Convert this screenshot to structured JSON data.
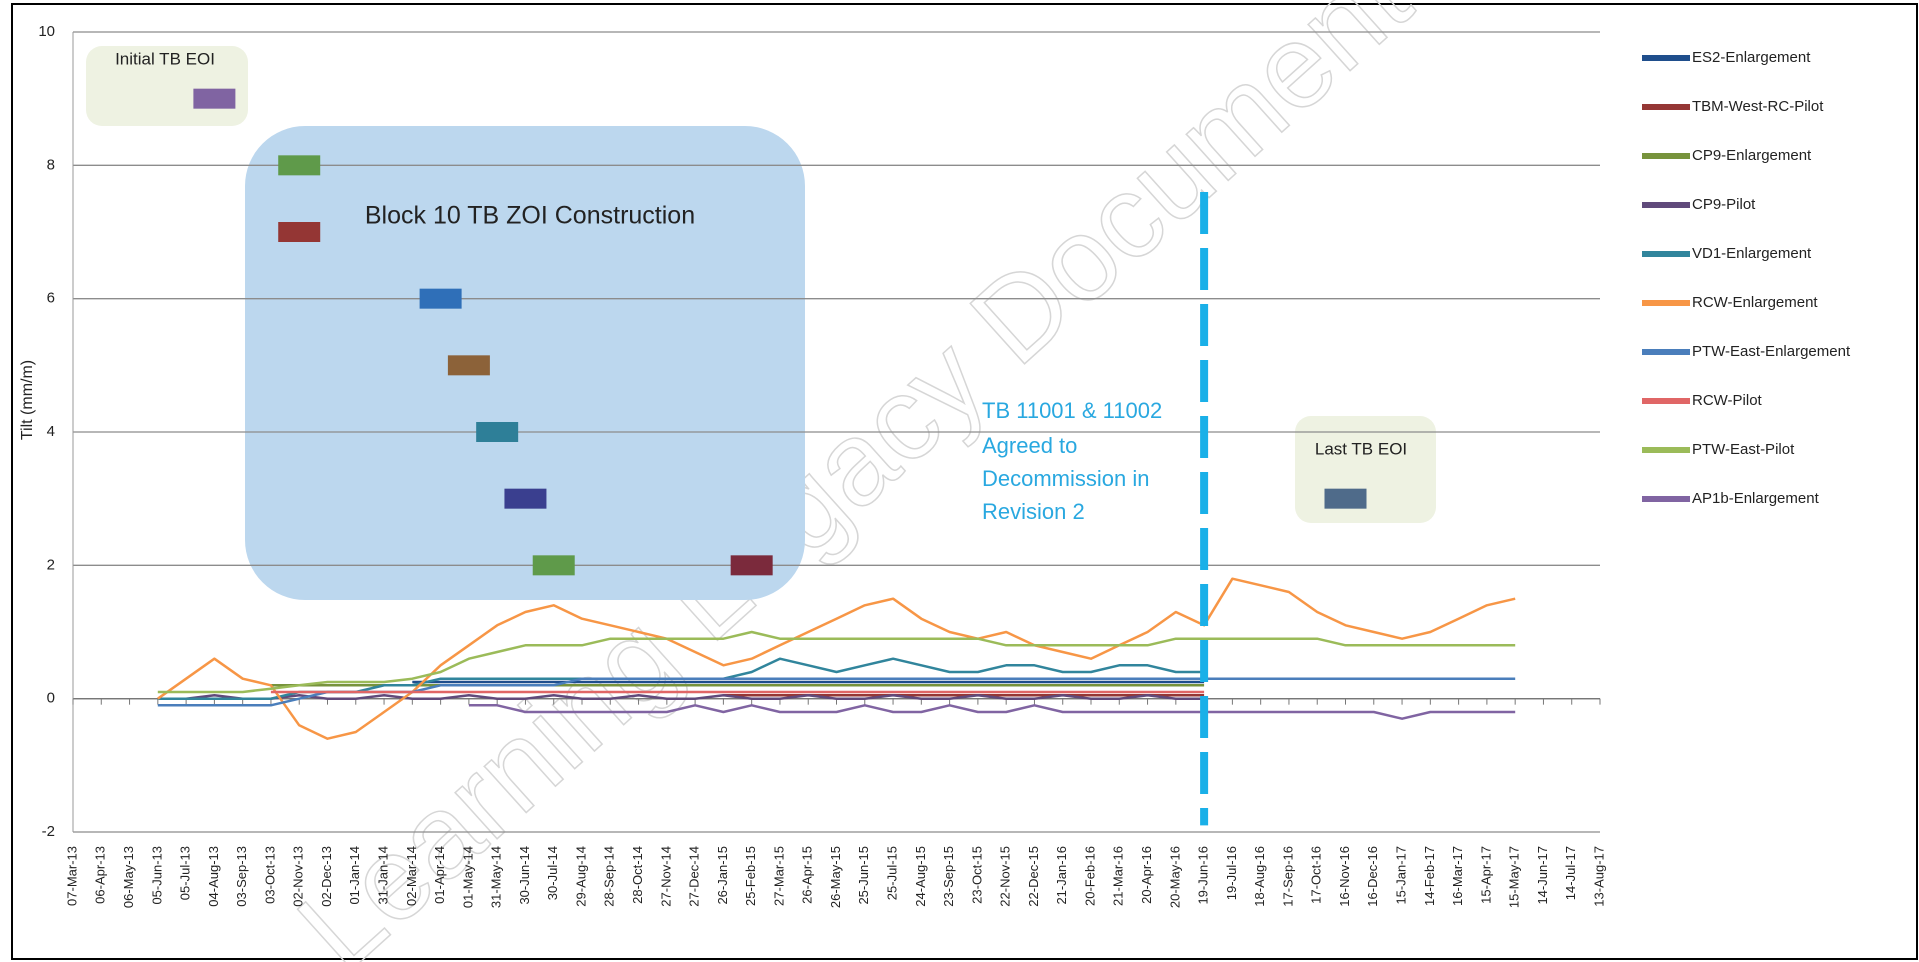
{
  "chart_data": {
    "type": "line",
    "y_label": "Tilt (mm/m)",
    "watermark": "Learning Legacy Document",
    "annotations": {
      "initial": "Initial TB EOI",
      "block": "Block 10 TB ZOI Construction",
      "decommission": [
        "TB 11001 & 11002",
        "Agreed to",
        "Decommission in",
        "Revision 2"
      ],
      "last": "Last TB EOI"
    },
    "categories": [
      "07-Mar-13",
      "06-Apr-13",
      "06-May-13",
      "05-Jun-13",
      "05-Jul-13",
      "04-Aug-13",
      "03-Sep-13",
      "03-Oct-13",
      "02-Nov-13",
      "02-Dec-13",
      "01-Jan-14",
      "31-Jan-14",
      "02-Mar-14",
      "01-Apr-14",
      "01-May-14",
      "31-May-14",
      "30-Jun-14",
      "30-Jul-14",
      "29-Aug-14",
      "28-Sep-14",
      "28-Oct-14",
      "27-Nov-14",
      "27-Dec-14",
      "26-Jan-15",
      "25-Feb-15",
      "27-Mar-15",
      "26-Apr-15",
      "26-May-15",
      "25-Jun-15",
      "25-Jul-15",
      "24-Aug-15",
      "23-Sep-15",
      "23-Oct-15",
      "22-Nov-15",
      "22-Dec-15",
      "21-Jan-16",
      "20-Feb-16",
      "21-Mar-16",
      "20-Apr-16",
      "20-May-16",
      "19-Jun-16",
      "19-Jul-16",
      "18-Aug-16",
      "17-Sep-16",
      "17-Oct-16",
      "16-Nov-16",
      "16-Dec-16",
      "15-Jan-17",
      "14-Feb-17",
      "16-Mar-17",
      "15-Apr-17",
      "15-May-17",
      "14-Jun-17",
      "14-Jul-17",
      "13-Aug-17"
    ],
    "series": [
      {
        "name": "ES2-Enlargement",
        "color": "#1f4e8c",
        "values": [
          null,
          null,
          null,
          null,
          null,
          null,
          null,
          null,
          null,
          null,
          null,
          null,
          0.25,
          0.25,
          0.25,
          0.25,
          0.25,
          0.25,
          0.25,
          0.25,
          0.25,
          0.25,
          0.25,
          0.25,
          0.25,
          0.25,
          0.25,
          0.25,
          0.25,
          0.25,
          0.25,
          0.25,
          0.25,
          0.25,
          0.25,
          0.25,
          0.25,
          0.25,
          0.25,
          0.25,
          0.25,
          null,
          null,
          null,
          null,
          null,
          null,
          null,
          null,
          null,
          null,
          null,
          null,
          null,
          null
        ]
      },
      {
        "name": "TBM-West-RC-Pilot",
        "color": "#953735",
        "values": [
          null,
          null,
          null,
          null,
          null,
          null,
          null,
          null,
          null,
          null,
          null,
          null,
          null,
          null,
          null,
          null,
          null,
          null,
          null,
          null,
          null,
          null,
          null,
          0.05,
          0.05,
          0.05,
          0.05,
          0.05,
          0.05,
          0.05,
          0.05,
          0.05,
          0.05,
          0.05,
          0.05,
          0.05,
          0.05,
          0.05,
          0.05,
          0.05,
          0.05,
          null,
          null,
          null,
          null,
          null,
          null,
          null,
          null,
          null,
          null,
          null,
          null,
          null,
          null
        ]
      },
      {
        "name": "CP9-Enlargement",
        "color": "#77933c",
        "values": [
          null,
          null,
          null,
          null,
          null,
          null,
          null,
          0.2,
          0.2,
          0.2,
          0.2,
          0.2,
          0.2,
          0.2,
          0.2,
          0.2,
          0.2,
          0.2,
          0.2,
          0.2,
          0.2,
          0.2,
          0.2,
          0.2,
          0.2,
          0.2,
          0.2,
          0.2,
          0.2,
          0.2,
          0.2,
          0.2,
          0.2,
          0.2,
          0.2,
          0.2,
          0.2,
          0.2,
          0.2,
          0.2,
          0.2,
          null,
          null,
          null,
          null,
          null,
          null,
          null,
          null,
          null,
          null,
          null,
          null,
          null,
          null
        ]
      },
      {
        "name": "CP9-Pilot",
        "color": "#604a7b",
        "values": [
          null,
          null,
          null,
          0,
          0,
          0.05,
          0,
          0,
          0.05,
          0,
          0,
          0.05,
          0,
          0,
          0.05,
          0,
          0,
          0.05,
          0,
          0,
          0.05,
          0,
          0,
          0.05,
          0,
          0,
          0.05,
          0,
          0,
          0.05,
          0,
          0,
          0.05,
          0,
          0,
          0.05,
          0,
          0,
          0.05,
          0,
          0,
          null,
          null,
          null,
          null,
          null,
          null,
          null,
          null,
          null,
          null,
          null,
          null,
          null,
          null
        ]
      },
      {
        "name": "VD1-Enlargement",
        "color": "#31859c",
        "values": [
          null,
          null,
          null,
          0,
          0,
          0,
          0,
          0,
          0.1,
          0.1,
          0.1,
          0.2,
          0.2,
          0.3,
          0.3,
          0.3,
          0.3,
          0.3,
          0.3,
          0.3,
          0.3,
          0.3,
          0.3,
          0.3,
          0.4,
          0.6,
          0.5,
          0.4,
          0.5,
          0.6,
          0.5,
          0.4,
          0.4,
          0.5,
          0.5,
          0.4,
          0.4,
          0.5,
          0.5,
          0.4,
          0.4,
          null,
          null,
          null,
          null,
          null,
          null,
          null,
          null,
          null,
          null,
          null,
          null,
          null,
          null
        ]
      },
      {
        "name": "RCW-Enlargement",
        "color": "#f79646",
        "values": [
          null,
          null,
          null,
          0.0,
          0.3,
          0.6,
          0.3,
          0.2,
          -0.4,
          -0.6,
          -0.5,
          -0.2,
          0.1,
          0.5,
          0.8,
          1.1,
          1.3,
          1.4,
          1.2,
          1.1,
          1.0,
          0.9,
          0.7,
          0.5,
          0.6,
          0.8,
          1.0,
          1.2,
          1.4,
          1.5,
          1.2,
          1.0,
          0.9,
          1.0,
          0.8,
          0.7,
          0.6,
          0.8,
          1.0,
          1.3,
          1.1,
          1.8,
          1.7,
          1.6,
          1.3,
          1.1,
          1.0,
          0.9,
          1.0,
          1.2,
          1.4,
          1.5,
          null,
          null,
          null
        ]
      },
      {
        "name": "PTW-East-Enlargement",
        "color": "#4a7ebb",
        "values": [
          null,
          null,
          null,
          -0.1,
          -0.1,
          -0.1,
          -0.1,
          -0.1,
          0,
          0.1,
          0.1,
          0.1,
          0.1,
          0.2,
          0.2,
          0.2,
          0.2,
          0.2,
          0.3,
          0.3,
          0.3,
          0.3,
          0.3,
          0.3,
          0.3,
          0.3,
          0.3,
          0.3,
          0.3,
          0.3,
          0.3,
          0.3,
          0.3,
          0.3,
          0.3,
          0.3,
          0.3,
          0.3,
          0.3,
          0.3,
          0.3,
          0.3,
          0.3,
          0.3,
          0.3,
          0.3,
          0.3,
          0.3,
          0.3,
          0.3,
          0.3,
          0.3,
          null,
          null,
          null
        ]
      },
      {
        "name": "RCW-Pilot",
        "color": "#e06666",
        "values": [
          null,
          null,
          null,
          null,
          null,
          null,
          null,
          0.1,
          0.1,
          0.1,
          0.1,
          0.1,
          0.1,
          0.1,
          0.1,
          0.1,
          0.1,
          0.1,
          0.1,
          0.1,
          0.1,
          0.1,
          0.1,
          0.1,
          0.1,
          0.1,
          0.1,
          0.1,
          0.1,
          0.1,
          0.1,
          0.1,
          0.1,
          0.1,
          0.1,
          0.1,
          0.1,
          0.1,
          0.1,
          0.1,
          0.1,
          null,
          null,
          null,
          null,
          null,
          null,
          null,
          null,
          null,
          null,
          null,
          null,
          null,
          null
        ]
      },
      {
        "name": "PTW-East-Pilot",
        "color": "#9bbb59",
        "values": [
          null,
          null,
          null,
          0.1,
          0.1,
          0.1,
          0.1,
          0.15,
          0.2,
          0.25,
          0.25,
          0.25,
          0.3,
          0.4,
          0.6,
          0.7,
          0.8,
          0.8,
          0.8,
          0.9,
          0.9,
          0.9,
          0.9,
          0.9,
          1.0,
          0.9,
          0.9,
          0.9,
          0.9,
          0.9,
          0.9,
          0.9,
          0.9,
          0.8,
          0.8,
          0.8,
          0.8,
          0.8,
          0.8,
          0.9,
          0.9,
          0.9,
          0.9,
          0.9,
          0.9,
          0.8,
          0.8,
          0.8,
          0.8,
          0.8,
          0.8,
          0.8,
          null,
          null,
          null
        ]
      },
      {
        "name": "AP1b-Enlargement",
        "color": "#8064a2",
        "values": [
          null,
          null,
          null,
          null,
          null,
          null,
          null,
          null,
          null,
          null,
          null,
          null,
          null,
          null,
          -0.1,
          -0.1,
          -0.2,
          -0.2,
          -0.2,
          -0.2,
          -0.2,
          -0.2,
          -0.1,
          -0.2,
          -0.1,
          -0.2,
          -0.2,
          -0.2,
          -0.1,
          -0.2,
          -0.2,
          -0.1,
          -0.2,
          -0.2,
          -0.1,
          -0.2,
          -0.2,
          -0.2,
          -0.2,
          -0.2,
          -0.2,
          -0.2,
          -0.2,
          -0.2,
          -0.2,
          -0.2,
          -0.2,
          -0.3,
          -0.2,
          -0.2,
          -0.2,
          -0.2,
          null,
          null,
          null
        ]
      }
    ],
    "markers": [
      {
        "x": "04-Aug-13",
        "y": 9,
        "color": "#8064a2"
      },
      {
        "x": "02-Nov-13",
        "y": 8,
        "color": "#5f9a4a"
      },
      {
        "x": "02-Nov-13",
        "y": 7,
        "color": "#943634"
      },
      {
        "x": "01-Apr-14",
        "y": 6,
        "color": "#2f6fb8"
      },
      {
        "x": "01-May-14",
        "y": 5,
        "color": "#8c6239"
      },
      {
        "x": "31-May-14",
        "y": 4,
        "color": "#2e7f98"
      },
      {
        "x": "30-Jun-14",
        "y": 3,
        "color": "#3a3f8f"
      },
      {
        "x": "30-Jul-14",
        "y": 2,
        "color": "#5f9a4a"
      },
      {
        "x": "25-Feb-15",
        "y": 2,
        "color": "#7b2a3c"
      },
      {
        "x": "16-Nov-16",
        "y": 3,
        "color": "#4f6b8a"
      }
    ],
    "vline": {
      "x": "19-Jun-16",
      "color": "#1ab0e8"
    },
    "ylim": [
      -2,
      10
    ],
    "yticks": [
      -2,
      0,
      2,
      4,
      6,
      8,
      10
    ],
    "grid": true,
    "legend": "right"
  }
}
